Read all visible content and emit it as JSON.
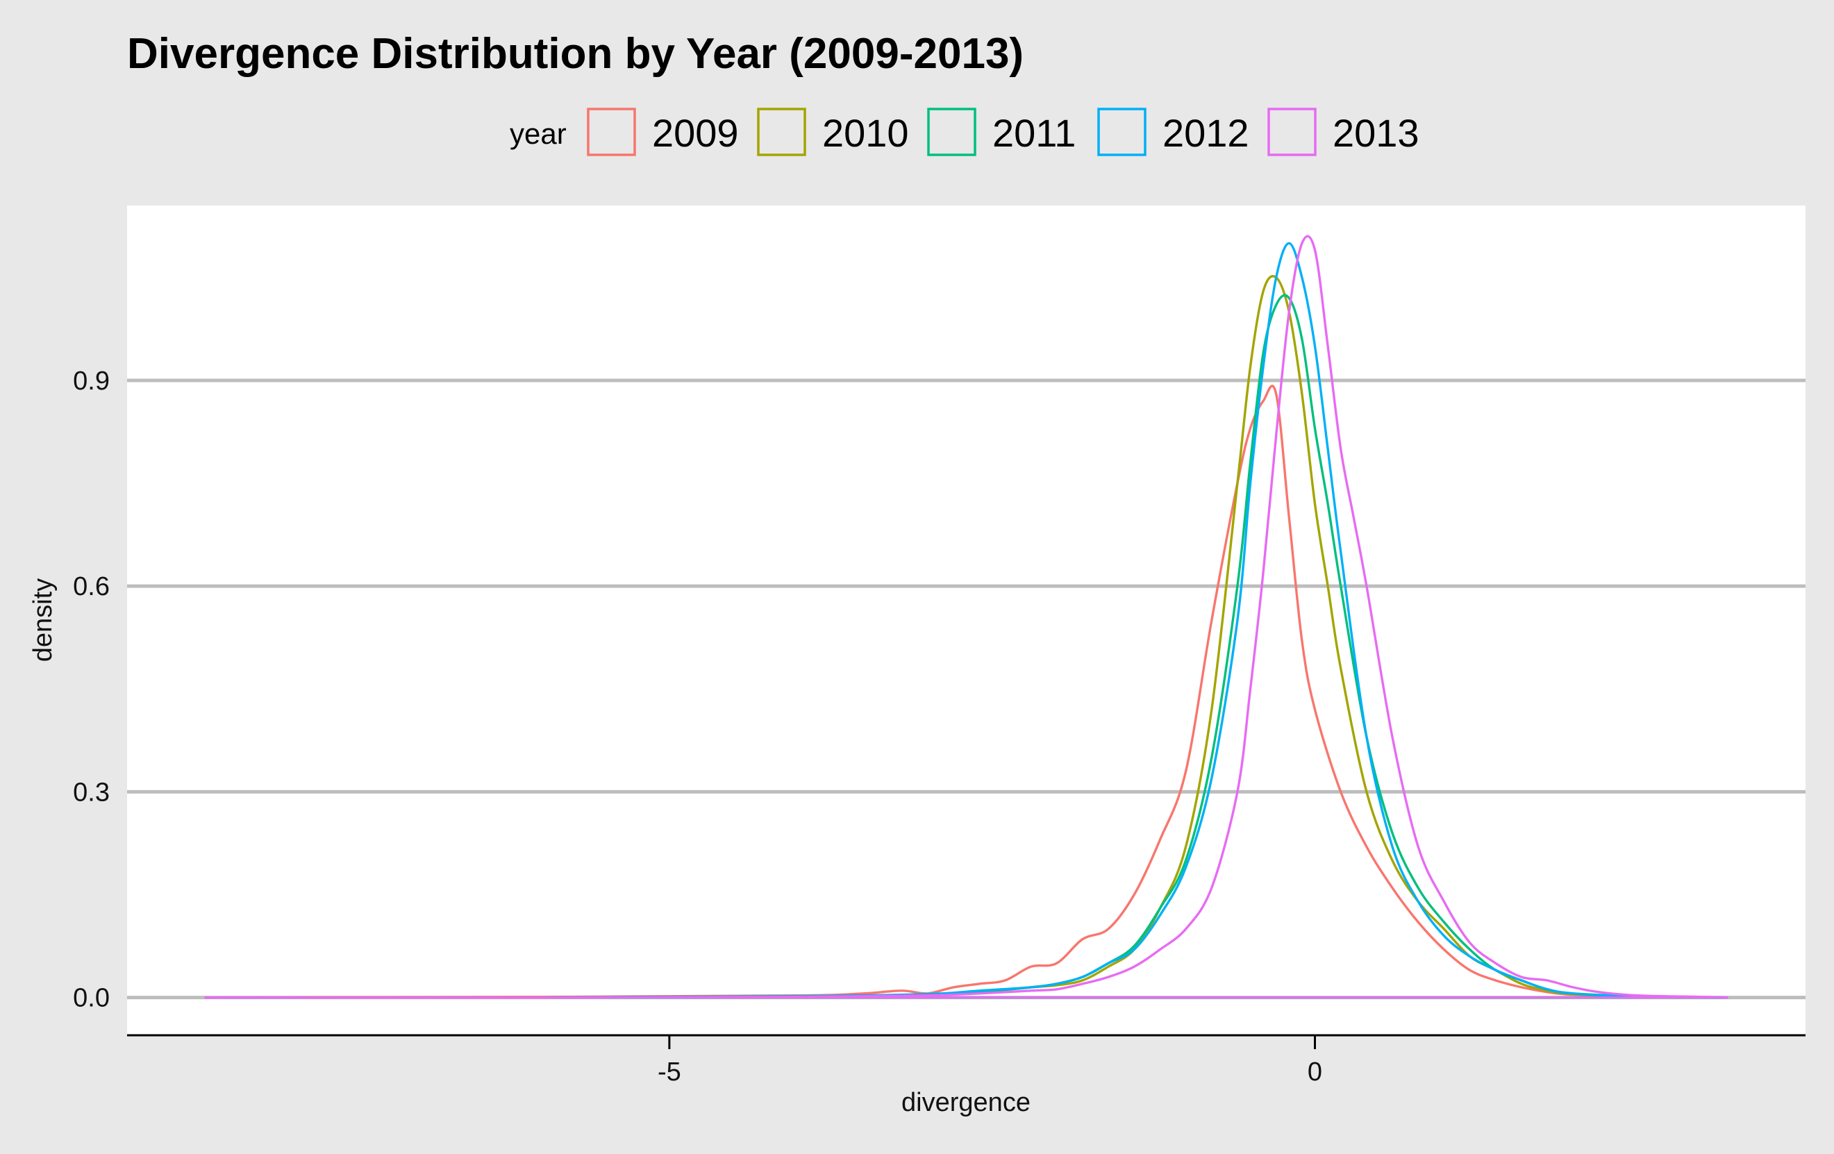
{
  "chart_data": {
    "type": "line",
    "title": "Divergence Distribution by Year (2009-2013)",
    "xlabel": "divergence",
    "ylabel": "density",
    "xlim": [
      -9.2,
      3.8
    ],
    "ylim": [
      -0.055,
      1.155
    ],
    "x_ticks": [
      -5,
      0
    ],
    "x_tick_labels": [
      "-5",
      "0"
    ],
    "y_ticks": [
      0.0,
      0.3,
      0.6,
      0.9
    ],
    "y_tick_labels": [
      "0.0",
      "0.3",
      "0.6",
      "0.9"
    ],
    "grid": "horizontal-major",
    "legend": {
      "title": "year",
      "position": "top",
      "entries": [
        "2009",
        "2010",
        "2011",
        "2012",
        "2013"
      ]
    },
    "series": [
      {
        "name": "2009",
        "color": "#F8766D",
        "x": [
          -8.6,
          -6.0,
          -4.0,
          -3.5,
          -3.2,
          -3.0,
          -2.8,
          -2.6,
          -2.4,
          -2.2,
          -2.0,
          -1.8,
          -1.6,
          -1.4,
          -1.2,
          -1.0,
          -0.8,
          -0.6,
          -0.5,
          -0.4,
          -0.3,
          -0.2,
          -0.1,
          0.0,
          0.2,
          0.4,
          0.6,
          0.8,
          1.0,
          1.2,
          1.4,
          1.6,
          1.8,
          2.0,
          2.5,
          3.0,
          3.2
        ],
        "y": [
          0.0,
          0.001,
          0.003,
          0.006,
          0.01,
          0.006,
          0.015,
          0.02,
          0.025,
          0.045,
          0.05,
          0.085,
          0.1,
          0.15,
          0.23,
          0.33,
          0.55,
          0.75,
          0.83,
          0.87,
          0.88,
          0.7,
          0.52,
          0.42,
          0.3,
          0.22,
          0.16,
          0.11,
          0.07,
          0.04,
          0.025,
          0.015,
          0.008,
          0.004,
          0.001,
          0.0,
          0.0
        ]
      },
      {
        "name": "2010",
        "color": "#A3A500",
        "x": [
          -8.6,
          -6.0,
          -4.0,
          -3.0,
          -2.6,
          -2.2,
          -2.0,
          -1.8,
          -1.6,
          -1.4,
          -1.2,
          -1.0,
          -0.8,
          -0.6,
          -0.5,
          -0.4,
          -0.3,
          -0.2,
          -0.1,
          0.0,
          0.1,
          0.2,
          0.4,
          0.6,
          0.8,
          1.0,
          1.2,
          1.4,
          1.6,
          1.8,
          2.0,
          2.5,
          3.2
        ],
        "y": [
          0.0,
          0.0,
          0.002,
          0.004,
          0.008,
          0.015,
          0.018,
          0.025,
          0.045,
          0.07,
          0.13,
          0.22,
          0.42,
          0.75,
          0.92,
          1.03,
          1.05,
          1.0,
          0.88,
          0.72,
          0.6,
          0.48,
          0.3,
          0.2,
          0.14,
          0.1,
          0.06,
          0.04,
          0.02,
          0.01,
          0.005,
          0.001,
          0.0
        ]
      },
      {
        "name": "2011",
        "color": "#00BF7D",
        "x": [
          -8.6,
          -6.0,
          -4.0,
          -3.0,
          -2.6,
          -2.2,
          -2.0,
          -1.8,
          -1.6,
          -1.4,
          -1.2,
          -1.0,
          -0.8,
          -0.6,
          -0.5,
          -0.4,
          -0.3,
          -0.2,
          -0.1,
          0.0,
          0.1,
          0.2,
          0.4,
          0.6,
          0.8,
          1.0,
          1.2,
          1.4,
          1.6,
          1.8,
          2.0,
          2.5,
          3.2
        ],
        "y": [
          0.0,
          0.0,
          0.002,
          0.004,
          0.008,
          0.015,
          0.02,
          0.03,
          0.05,
          0.075,
          0.13,
          0.2,
          0.35,
          0.6,
          0.78,
          0.94,
          1.01,
          1.02,
          0.96,
          0.83,
          0.72,
          0.6,
          0.38,
          0.24,
          0.16,
          0.11,
          0.07,
          0.04,
          0.025,
          0.012,
          0.006,
          0.001,
          0.0
        ]
      },
      {
        "name": "2012",
        "color": "#00B0F6",
        "x": [
          -8.6,
          -6.0,
          -4.0,
          -3.0,
          -2.6,
          -2.2,
          -2.0,
          -1.8,
          -1.6,
          -1.4,
          -1.2,
          -1.0,
          -0.8,
          -0.6,
          -0.5,
          -0.4,
          -0.3,
          -0.2,
          -0.1,
          0.0,
          0.1,
          0.2,
          0.4,
          0.6,
          0.8,
          1.0,
          1.2,
          1.4,
          1.6,
          1.8,
          2.0,
          2.5,
          3.2
        ],
        "y": [
          0.0,
          0.0,
          0.002,
          0.005,
          0.01,
          0.015,
          0.02,
          0.03,
          0.05,
          0.07,
          0.12,
          0.19,
          0.32,
          0.55,
          0.75,
          0.92,
          1.05,
          1.1,
          1.05,
          0.95,
          0.8,
          0.65,
          0.38,
          0.22,
          0.14,
          0.09,
          0.06,
          0.04,
          0.025,
          0.012,
          0.006,
          0.002,
          0.0
        ]
      },
      {
        "name": "2013",
        "color": "#E76BF3",
        "x": [
          -8.6,
          -6.0,
          -4.0,
          -3.0,
          -2.6,
          -2.2,
          -2.0,
          -1.8,
          -1.6,
          -1.4,
          -1.2,
          -1.0,
          -0.8,
          -0.6,
          -0.5,
          -0.4,
          -0.3,
          -0.2,
          -0.1,
          0.0,
          0.1,
          0.2,
          0.3,
          0.4,
          0.6,
          0.8,
          1.0,
          1.2,
          1.4,
          1.6,
          1.8,
          2.0,
          2.2,
          2.5,
          3.0,
          3.2
        ],
        "y": [
          0.0,
          0.0,
          0.001,
          0.003,
          0.006,
          0.01,
          0.012,
          0.02,
          0.03,
          0.045,
          0.07,
          0.1,
          0.16,
          0.3,
          0.45,
          0.62,
          0.82,
          1.0,
          1.1,
          1.09,
          0.95,
          0.8,
          0.7,
          0.6,
          0.38,
          0.22,
          0.14,
          0.08,
          0.05,
          0.03,
          0.025,
          0.015,
          0.008,
          0.003,
          0.001,
          0.0
        ]
      }
    ]
  }
}
